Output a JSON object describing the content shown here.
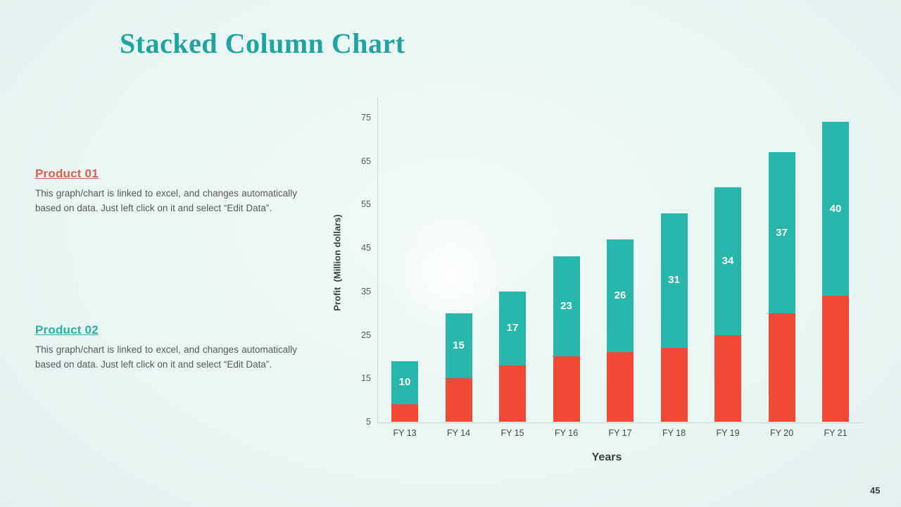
{
  "page": {
    "title": "Stacked Column Chart",
    "page_number": "45"
  },
  "sections": [
    {
      "heading": "Product 01",
      "heading_color": "#d9604f",
      "body": "This graph/chart is linked to excel, and changes automatically based on data. Just left click on it and select “Edit Data”."
    },
    {
      "heading": "Product 02",
      "heading_color": "#2bafa5",
      "body": "This graph/chart is linked to excel, and changes automatically based on data. Just left click on it and select “Edit Data”."
    }
  ],
  "chart_data": {
    "type": "bar",
    "stacked": true,
    "title": "",
    "xlabel": "Years",
    "ylabel": "Profit  (Million dollars)",
    "categories": [
      "FY 13",
      "FY 14",
      "FY 15",
      "FY 16",
      "FY 17",
      "FY 18",
      "FY 19",
      "FY 20",
      "FY 21"
    ],
    "series": [
      {
        "name": "Product 01",
        "color": "#f04a36",
        "values": [
          9,
          15,
          18,
          20,
          21,
          22,
          25,
          30,
          34
        ],
        "data_labels": false
      },
      {
        "name": "Product 02",
        "color": "#29b6ab",
        "values": [
          10,
          15,
          17,
          23,
          26,
          31,
          34,
          37,
          40
        ],
        "data_labels": true,
        "label_color": "#ffffff"
      }
    ],
    "ylim": [
      5,
      75
    ],
    "yticks": [
      5,
      15,
      25,
      35,
      45,
      55,
      65,
      75
    ],
    "grid": false,
    "legend": "none",
    "bars_clipped_at_axis_min": true
  }
}
